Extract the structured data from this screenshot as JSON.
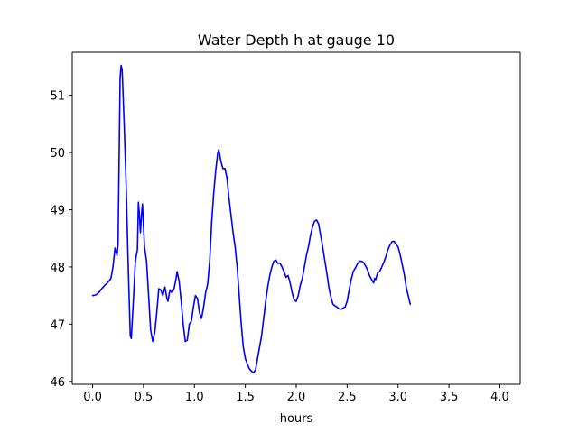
{
  "chart_data": {
    "type": "line",
    "title": "Water Depth h at gauge 10",
    "xlabel": "hours",
    "ylabel": "",
    "xlim": [
      -0.2,
      4.2
    ],
    "ylim": [
      45.95,
      51.75
    ],
    "x_ticks": [
      0.0,
      0.5,
      1.0,
      1.5,
      2.0,
      2.5,
      3.0,
      3.5,
      4.0
    ],
    "x_tick_labels": [
      "0.0",
      "0.5",
      "1.0",
      "1.5",
      "2.0",
      "2.5",
      "3.0",
      "3.5",
      "4.0"
    ],
    "y_ticks": [
      46,
      47,
      48,
      49,
      50,
      51
    ],
    "y_tick_labels": [
      "46",
      "47",
      "48",
      "49",
      "50",
      "51"
    ],
    "grid": false,
    "legend": "none",
    "colors": {
      "series": "#0000ff",
      "axes": "#000000",
      "background": "#ffffff"
    },
    "series": [
      {
        "color": "#0000ff",
        "points": [
          [
            0.0,
            47.5
          ],
          [
            0.03,
            47.51
          ],
          [
            0.06,
            47.55
          ],
          [
            0.09,
            47.62
          ],
          [
            0.12,
            47.68
          ],
          [
            0.15,
            47.73
          ],
          [
            0.18,
            47.8
          ],
          [
            0.2,
            48.0
          ],
          [
            0.22,
            48.33
          ],
          [
            0.24,
            48.2
          ],
          [
            0.25,
            48.4
          ],
          [
            0.27,
            51.3
          ],
          [
            0.28,
            51.52
          ],
          [
            0.29,
            51.45
          ],
          [
            0.31,
            50.5
          ],
          [
            0.33,
            49.4
          ],
          [
            0.35,
            48.0
          ],
          [
            0.37,
            46.8
          ],
          [
            0.38,
            46.75
          ],
          [
            0.4,
            47.4
          ],
          [
            0.42,
            48.1
          ],
          [
            0.44,
            48.3
          ],
          [
            0.45,
            49.13
          ],
          [
            0.46,
            48.9
          ],
          [
            0.47,
            48.6
          ],
          [
            0.48,
            48.9
          ],
          [
            0.49,
            49.1
          ],
          [
            0.5,
            48.7
          ],
          [
            0.51,
            48.35
          ],
          [
            0.53,
            48.1
          ],
          [
            0.55,
            47.5
          ],
          [
            0.57,
            46.9
          ],
          [
            0.59,
            46.7
          ],
          [
            0.61,
            46.85
          ],
          [
            0.63,
            47.2
          ],
          [
            0.65,
            47.62
          ],
          [
            0.67,
            47.6
          ],
          [
            0.69,
            47.5
          ],
          [
            0.71,
            47.65
          ],
          [
            0.73,
            47.45
          ],
          [
            0.74,
            47.4
          ],
          [
            0.76,
            47.6
          ],
          [
            0.78,
            47.55
          ],
          [
            0.8,
            47.62
          ],
          [
            0.82,
            47.8
          ],
          [
            0.83,
            47.92
          ],
          [
            0.85,
            47.75
          ],
          [
            0.87,
            47.4
          ],
          [
            0.89,
            47.0
          ],
          [
            0.91,
            46.7
          ],
          [
            0.93,
            46.72
          ],
          [
            0.95,
            47.0
          ],
          [
            0.97,
            47.05
          ],
          [
            0.99,
            47.3
          ],
          [
            1.01,
            47.5
          ],
          [
            1.03,
            47.45
          ],
          [
            1.05,
            47.2
          ],
          [
            1.07,
            47.1
          ],
          [
            1.09,
            47.3
          ],
          [
            1.11,
            47.55
          ],
          [
            1.13,
            47.7
          ],
          [
            1.15,
            48.1
          ],
          [
            1.17,
            48.8
          ],
          [
            1.19,
            49.3
          ],
          [
            1.21,
            49.7
          ],
          [
            1.23,
            50.0
          ],
          [
            1.24,
            50.05
          ],
          [
            1.26,
            49.85
          ],
          [
            1.28,
            49.72
          ],
          [
            1.3,
            49.72
          ],
          [
            1.32,
            49.55
          ],
          [
            1.34,
            49.2
          ],
          [
            1.36,
            48.9
          ],
          [
            1.38,
            48.6
          ],
          [
            1.4,
            48.35
          ],
          [
            1.42,
            48.0
          ],
          [
            1.44,
            47.5
          ],
          [
            1.46,
            47.0
          ],
          [
            1.48,
            46.6
          ],
          [
            1.5,
            46.4
          ],
          [
            1.52,
            46.3
          ],
          [
            1.54,
            46.22
          ],
          [
            1.56,
            46.18
          ],
          [
            1.58,
            46.15
          ],
          [
            1.6,
            46.2
          ],
          [
            1.62,
            46.4
          ],
          [
            1.64,
            46.6
          ],
          [
            1.66,
            46.8
          ],
          [
            1.68,
            47.1
          ],
          [
            1.7,
            47.4
          ],
          [
            1.72,
            47.65
          ],
          [
            1.74,
            47.85
          ],
          [
            1.76,
            48.0
          ],
          [
            1.78,
            48.1
          ],
          [
            1.8,
            48.12
          ],
          [
            1.82,
            48.06
          ],
          [
            1.84,
            48.07
          ],
          [
            1.86,
            48.0
          ],
          [
            1.88,
            47.92
          ],
          [
            1.9,
            47.82
          ],
          [
            1.92,
            47.85
          ],
          [
            1.94,
            47.72
          ],
          [
            1.96,
            47.55
          ],
          [
            1.98,
            47.42
          ],
          [
            2.0,
            47.4
          ],
          [
            2.02,
            47.5
          ],
          [
            2.04,
            47.68
          ],
          [
            2.06,
            47.8
          ],
          [
            2.08,
            48.0
          ],
          [
            2.1,
            48.2
          ],
          [
            2.12,
            48.35
          ],
          [
            2.14,
            48.55
          ],
          [
            2.16,
            48.7
          ],
          [
            2.18,
            48.8
          ],
          [
            2.2,
            48.82
          ],
          [
            2.22,
            48.75
          ],
          [
            2.24,
            48.55
          ],
          [
            2.26,
            48.35
          ],
          [
            2.28,
            48.12
          ],
          [
            2.3,
            47.9
          ],
          [
            2.32,
            47.65
          ],
          [
            2.34,
            47.48
          ],
          [
            2.36,
            47.35
          ],
          [
            2.38,
            47.32
          ],
          [
            2.4,
            47.3
          ],
          [
            2.42,
            47.27
          ],
          [
            2.44,
            47.26
          ],
          [
            2.46,
            47.28
          ],
          [
            2.48,
            47.3
          ],
          [
            2.5,
            47.4
          ],
          [
            2.52,
            47.6
          ],
          [
            2.54,
            47.78
          ],
          [
            2.56,
            47.92
          ],
          [
            2.58,
            47.98
          ],
          [
            2.6,
            48.05
          ],
          [
            2.62,
            48.1
          ],
          [
            2.64,
            48.1
          ],
          [
            2.66,
            48.08
          ],
          [
            2.68,
            48.02
          ],
          [
            2.7,
            47.95
          ],
          [
            2.72,
            47.85
          ],
          [
            2.74,
            47.78
          ],
          [
            2.76,
            47.72
          ],
          [
            2.77,
            47.8
          ],
          [
            2.78,
            47.78
          ],
          [
            2.8,
            47.9
          ],
          [
            2.82,
            47.92
          ],
          [
            2.84,
            48.0
          ],
          [
            2.86,
            48.08
          ],
          [
            2.88,
            48.18
          ],
          [
            2.9,
            48.3
          ],
          [
            2.92,
            48.38
          ],
          [
            2.94,
            48.44
          ],
          [
            2.96,
            48.45
          ],
          [
            2.98,
            48.4
          ],
          [
            3.0,
            48.35
          ],
          [
            3.02,
            48.22
          ],
          [
            3.04,
            48.05
          ],
          [
            3.06,
            47.88
          ],
          [
            3.08,
            47.65
          ],
          [
            3.1,
            47.5
          ],
          [
            3.12,
            47.35
          ]
        ]
      }
    ]
  }
}
